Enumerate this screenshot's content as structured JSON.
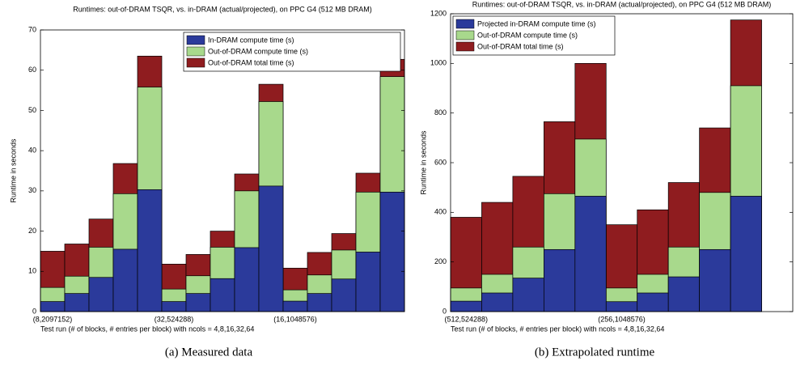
{
  "chart_data": [
    {
      "type": "bar",
      "title": "Runtimes: out-of-DRAM TSQR, vs. in-DRAM (actual/projected), on PPC G4 (512 MB DRAM)",
      "xlabel": "Test run (# of blocks, # entries per block) with ncols = 4,8,16,32,64",
      "ylabel": "Runtime in seconds",
      "caption": "(a) Measured data",
      "legend": "upper right",
      "categories": [
        "(8,2097152)",
        null,
        null,
        null,
        null,
        "(32,524288)",
        null,
        null,
        null,
        null,
        "(16,1048576)",
        null,
        null,
        null,
        null
      ],
      "ylim": [
        0,
        70
      ],
      "yticks": [
        0,
        10,
        20,
        30,
        40,
        50,
        60,
        70
      ],
      "series": [
        {
          "name": "In-DRAM compute time (s)",
          "color": "#2b3a9b",
          "values": [
            2.5,
            4.5,
            8.5,
            15.5,
            30.3,
            2.5,
            4.5,
            8.2,
            15.9,
            31.2,
            2.6,
            4.5,
            8.1,
            14.8,
            29.7
          ]
        },
        {
          "name": "Out-of-DRAM compute time (s)",
          "color": "#a8d98c",
          "values": [
            6,
            8.8,
            16,
            29.3,
            55.8,
            5.6,
            8.9,
            16,
            30,
            52.2,
            5.4,
            9.1,
            15.3,
            29.7,
            58.4
          ]
        },
        {
          "name": "Out-of-DRAM total time (s)",
          "color": "#8f1c1f",
          "values": [
            15,
            16.8,
            23,
            36.8,
            63.5,
            11.8,
            14.2,
            20,
            34.2,
            56.5,
            10.8,
            14.7,
            19.4,
            34.4,
            62.7
          ]
        }
      ]
    },
    {
      "type": "bar",
      "title": "Runtimes: out-of-DRAM TSQR, vs. in-DRAM (actual/projected), on PPC G4 (512 MB DRAM)",
      "xlabel": "Test run (# of blocks, # entries per block) with ncols = 4,8,16,32,64",
      "ylabel": "Runtime in seconds",
      "caption": "(b) Extrapolated runtime",
      "legend": "upper left",
      "categories": [
        "(512,524288)",
        null,
        null,
        null,
        null,
        "(256,1048576)",
        null,
        null,
        null,
        null
      ],
      "ylim": [
        0,
        1200
      ],
      "yticks": [
        0,
        200,
        400,
        600,
        800,
        1000,
        1200
      ],
      "series": [
        {
          "name": "Projected in-DRAM compute time (s)",
          "color": "#2b3a9b",
          "values": [
            42,
            75,
            135,
            250,
            465,
            40,
            75,
            140,
            250,
            465
          ]
        },
        {
          "name": "Out-of-DRAM compute time (s)",
          "color": "#a8d98c",
          "values": [
            95,
            150,
            260,
            475,
            695,
            95,
            150,
            260,
            480,
            910
          ]
        },
        {
          "name": "Out-of-DRAM total time (s)",
          "color": "#8f1c1f",
          "values": [
            380,
            440,
            545,
            765,
            1000,
            350,
            410,
            520,
            740,
            1175
          ]
        }
      ]
    }
  ]
}
